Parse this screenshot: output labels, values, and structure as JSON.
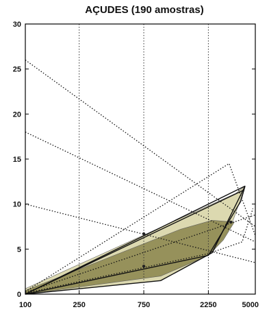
{
  "chart_data": {
    "type": "line",
    "title": "AÇUDES (190 amostras)",
    "xlabel": "",
    "ylabel": "",
    "x_scale": "log",
    "xlim": [
      100,
      5000
    ],
    "ylim": [
      0,
      30
    ],
    "x_ticks": [
      {
        "value": 100,
        "label": "100"
      },
      {
        "value": 250,
        "label": "250"
      },
      {
        "value": 750,
        "label": "750"
      },
      {
        "value": 2250,
        "label": "2250"
      },
      {
        "value": 5000,
        "label": "5000"
      }
    ],
    "y_ticks": [
      {
        "value": 0,
        "label": "0"
      },
      {
        "value": 5,
        "label": "5"
      },
      {
        "value": 10,
        "label": "10"
      },
      {
        "value": 15,
        "label": "15"
      },
      {
        "value": 20,
        "label": "20"
      },
      {
        "value": 25,
        "label": "25"
      },
      {
        "value": 30,
        "label": "30"
      }
    ],
    "grid": "vertical dotted lines at x ticks",
    "colors": {
      "frame": "#000000",
      "grid": "#333333",
      "fill_inner": "#8f8a52",
      "fill_outer": "#d9d5a8",
      "lines": "#111111"
    },
    "shaded_regions": [
      {
        "name": "outer",
        "points": [
          [
            100,
            0
          ],
          [
            1000,
            1.5
          ],
          [
            2400,
            4.6
          ],
          [
            3300,
            7.5
          ],
          [
            3900,
            10.6
          ],
          [
            4200,
            12.0
          ],
          [
            3600,
            11.2
          ],
          [
            100,
            0.6
          ]
        ]
      },
      {
        "name": "inner",
        "points": [
          [
            100,
            0
          ],
          [
            1000,
            2.0
          ],
          [
            2250,
            4.3
          ],
          [
            2900,
            6.0
          ],
          [
            3500,
            8.0
          ],
          [
            2400,
            8.2
          ],
          [
            1400,
            7.2
          ],
          [
            100,
            0.4
          ]
        ]
      }
    ],
    "series": [
      {
        "style": "dotted",
        "values": [
          [
            100,
            26.0
          ],
          [
            5000,
            7.5
          ]
        ]
      },
      {
        "style": "dotted",
        "values": [
          [
            100,
            18.0
          ],
          [
            5000,
            5.8
          ]
        ]
      },
      {
        "style": "dotted",
        "values": [
          [
            100,
            10.0
          ],
          [
            5000,
            3.5
          ]
        ]
      },
      {
        "style": "dotted",
        "values": [
          [
            100,
            0.3
          ],
          [
            3200,
            14.5
          ],
          [
            5000,
            6.5
          ]
        ]
      },
      {
        "style": "dotted",
        "values": [
          [
            100,
            0.2
          ],
          [
            5000,
            8.8
          ]
        ]
      },
      {
        "style": "solid",
        "values": [
          [
            100,
            0.0
          ],
          [
            4200,
            12.0
          ]
        ]
      },
      {
        "style": "solid",
        "values": [
          [
            100,
            0.0
          ],
          [
            4150,
            11.6
          ]
        ]
      },
      {
        "style": "solid",
        "values": [
          [
            100,
            0.0
          ],
          [
            2250,
            4.3
          ],
          [
            3900,
            10.3
          ],
          [
            4200,
            12.0
          ]
        ]
      },
      {
        "style": "solid",
        "values": [
          [
            100,
            0.0
          ],
          [
            1000,
            1.5
          ],
          [
            2400,
            4.6
          ],
          [
            4200,
            12.0
          ]
        ]
      },
      {
        "style": "dotted",
        "values": [
          [
            100,
            0.1
          ],
          [
            2250,
            4.5
          ],
          [
            4000,
            5.8
          ],
          [
            4800,
            9.5
          ]
        ]
      }
    ],
    "markers": [
      [
        750,
        6.7
      ],
      [
        750,
        3.1
      ],
      [
        3300,
        8.0
      ]
    ]
  }
}
